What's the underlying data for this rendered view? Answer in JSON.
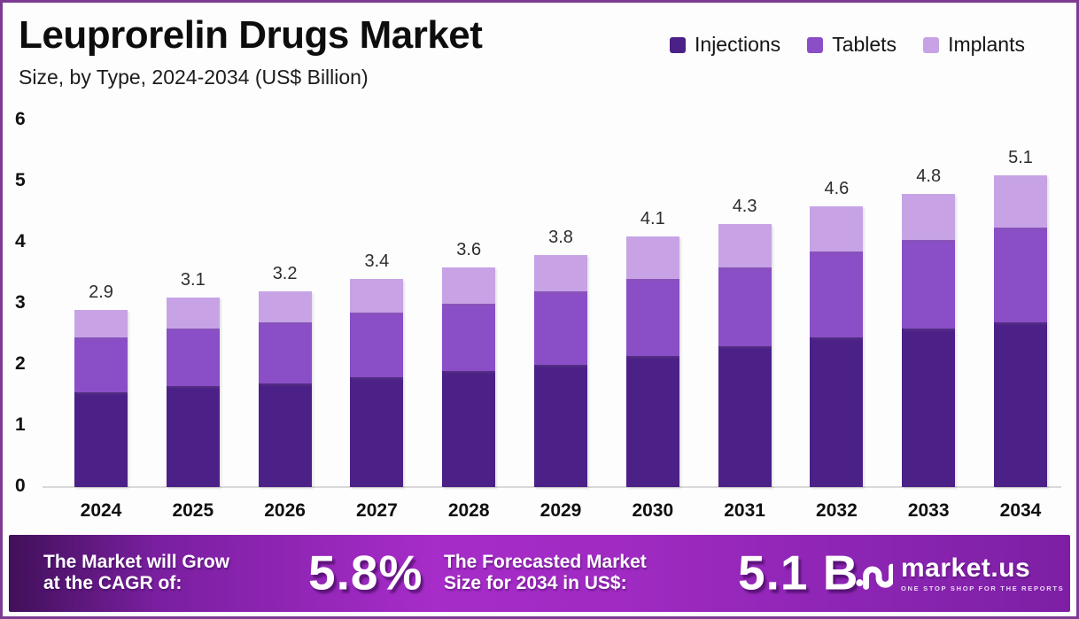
{
  "page": {
    "title": "Leuprorelin Drugs Market",
    "subtitle": "Size, by Type, 2024-2034 (US$ Billion)"
  },
  "legend": [
    {
      "label": "Injections",
      "color": "#4c2187"
    },
    {
      "label": "Tablets",
      "color": "#8a4ec6"
    },
    {
      "label": "Implants",
      "color": "#c7a3e6"
    }
  ],
  "chart_data": {
    "type": "bar",
    "stacked": true,
    "title": "Leuprorelin Drugs Market Size, by Type, 2024-2034 (US$ Billion)",
    "categories": [
      "2024",
      "2025",
      "2026",
      "2027",
      "2028",
      "2029",
      "2030",
      "2031",
      "2032",
      "2033",
      "2034"
    ],
    "series": [
      {
        "name": "Injections",
        "color": "#4c2187",
        "values": [
          1.55,
          1.65,
          1.7,
          1.8,
          1.9,
          2.0,
          2.15,
          2.3,
          2.45,
          2.6,
          2.7
        ]
      },
      {
        "name": "Tablets",
        "color": "#8a4ec6",
        "values": [
          0.9,
          0.95,
          1.0,
          1.05,
          1.1,
          1.2,
          1.25,
          1.3,
          1.4,
          1.45,
          1.55
        ]
      },
      {
        "name": "Implants",
        "color": "#c7a3e6",
        "values": [
          0.45,
          0.5,
          0.5,
          0.55,
          0.6,
          0.6,
          0.7,
          0.7,
          0.75,
          0.75,
          0.85
        ]
      }
    ],
    "totals": [
      2.9,
      3.1,
      3.2,
      3.4,
      3.6,
      3.8,
      4.1,
      4.3,
      4.6,
      4.8,
      5.1
    ],
    "total_labels": [
      "2.9",
      "3.1",
      "3.2",
      "3.4",
      "3.6",
      "3.8",
      "4.1",
      "4.3",
      "4.6",
      "4.8",
      "5.1"
    ],
    "xlabel": "",
    "ylabel": "",
    "ylim": [
      0,
      6
    ],
    "yticks": [
      0,
      1,
      2,
      3,
      4,
      5,
      6
    ],
    "grid": false,
    "legend_position": "top-right"
  },
  "banner": {
    "cagr_label_line1": "The Market will Grow",
    "cagr_label_line2": "at the CAGR of:",
    "cagr_value": "5.8%",
    "forecast_label_line1": "The Forecasted Market",
    "forecast_label_line2": "Size for 2034 in US$:",
    "forecast_value": "5.1 B",
    "logo_text": "market.us",
    "logo_tagline": "ONE STOP SHOP FOR THE REPORTS"
  },
  "colors": {
    "injections": "#4c2187",
    "tablets": "#8a4ec6",
    "implants": "#c7a3e6",
    "border": "#7e3b92",
    "axis_line": "#d9d9d9",
    "banner_gradient_start": "#41105a",
    "banner_gradient_mid": "#a72cc9",
    "banner_gradient_end": "#7d1fa4"
  }
}
